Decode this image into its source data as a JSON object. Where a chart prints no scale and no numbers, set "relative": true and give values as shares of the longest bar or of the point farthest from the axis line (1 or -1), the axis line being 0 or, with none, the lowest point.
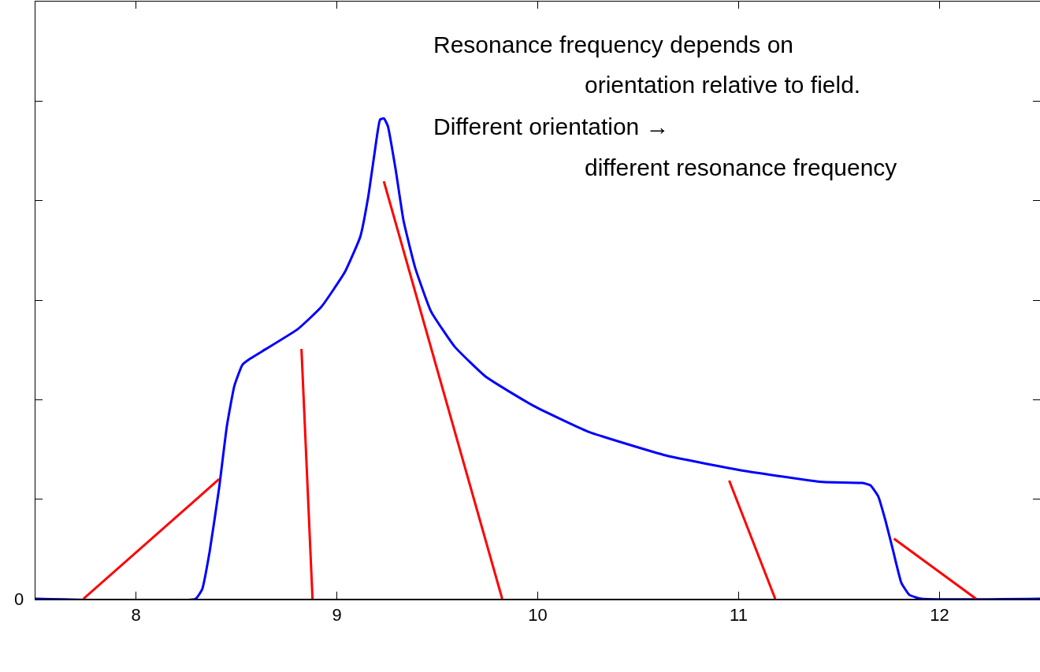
{
  "chart_data": {
    "type": "line",
    "relative": true,
    "annotations": [
      "Resonance frequency depends on",
      "orientation relative to field.",
      "Different orientation →",
      "different resonance frequency",
      "0"
    ],
    "xlim": [
      7.5,
      12.5
    ],
    "xticks": [
      8,
      9,
      10,
      11,
      12
    ],
    "grid": false,
    "marker": "none",
    "line_style": "solid",
    "series": [
      {
        "color": "#0000ff",
        "x": [
          7.5,
          8.297,
          8.33,
          8.367,
          8.414,
          8.453,
          8.49,
          8.53,
          8.57,
          8.648,
          8.805,
          8.922,
          9.04,
          9.117,
          9.156,
          9.19,
          9.215,
          9.234,
          9.254,
          9.293,
          9.332,
          9.39,
          9.469,
          9.586,
          9.742,
          9.977,
          10.25,
          10.64,
          11.03,
          11.42,
          11.617,
          11.656,
          11.695,
          11.73,
          11.77,
          11.81,
          11.85,
          11.91,
          12.5
        ],
        "values": [
          0,
          0,
          0.02,
          0.098,
          0.23,
          0.36,
          0.443,
          0.487,
          0.5,
          0.52,
          0.561,
          0.607,
          0.68,
          0.754,
          0.836,
          0.934,
          0.997,
          1,
          0.984,
          0.893,
          0.787,
          0.689,
          0.598,
          0.525,
          0.462,
          0.402,
          0.348,
          0.298,
          0.266,
          0.243,
          0.241,
          0.236,
          0.213,
          0.164,
          0.098,
          0.033,
          0.008,
          0,
          0
        ]
      },
      {
        "type": "line",
        "color": "#ff0000",
        "x": [
          7.739,
          8.414
        ],
        "values": [
          0,
          0.249
        ]
      },
      {
        "type": "line",
        "color": "#ff0000",
        "x": [
          8.824,
          8.879
        ],
        "values": [
          0.52,
          0
        ]
      },
      {
        "type": "line",
        "color": "#ff0000",
        "x": [
          9.234,
          9.823
        ],
        "values": [
          0.869,
          0
        ]
      },
      {
        "type": "line",
        "color": "#ff0000",
        "x": [
          10.953,
          11.182
        ],
        "values": [
          0.246,
          0
        ]
      },
      {
        "type": "line",
        "color": "#ff0000",
        "x": [
          11.773,
          12.181
        ],
        "values": [
          0.125,
          0
        ]
      }
    ]
  }
}
